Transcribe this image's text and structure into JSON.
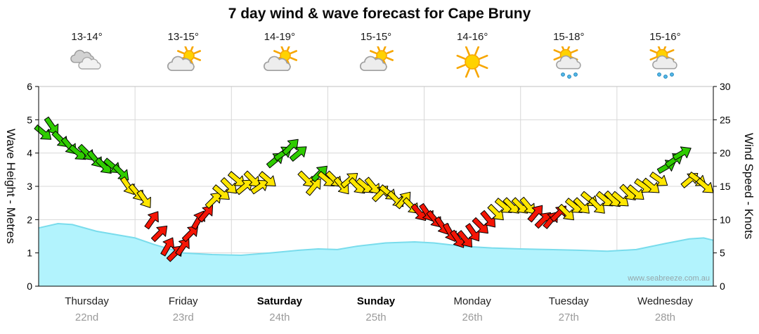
{
  "title": "7 day wind & wave forecast for Cape Bruny",
  "watermark": "www.seabreeze.com.au",
  "axes": {
    "left_label": "Wave Height - Metres",
    "right_label": "Wind Speed - Knots",
    "wave_range": [
      0,
      6
    ],
    "wind_range": [
      0,
      30
    ],
    "wave_ticks": [
      0,
      1,
      2,
      3,
      4,
      5,
      6
    ],
    "wind_ticks": [
      0,
      5,
      10,
      15,
      20,
      25,
      30
    ]
  },
  "days": [
    {
      "name": "Thursday",
      "date": "22nd",
      "temp": "13-14°",
      "icon": "cloudy",
      "weekend": false
    },
    {
      "name": "Friday",
      "date": "23rd",
      "temp": "13-15°",
      "icon": "partly-cloudy",
      "weekend": false
    },
    {
      "name": "Saturday",
      "date": "24th",
      "temp": "14-19°",
      "icon": "partly-cloudy",
      "weekend": true
    },
    {
      "name": "Sunday",
      "date": "25th",
      "temp": "15-15°",
      "icon": "partly-cloudy",
      "weekend": true
    },
    {
      "name": "Monday",
      "date": "26th",
      "temp": "14-16°",
      "icon": "sunny",
      "weekend": false
    },
    {
      "name": "Tuesday",
      "date": "27th",
      "temp": "15-18°",
      "icon": "sun-showers",
      "weekend": false
    },
    {
      "name": "Wednesday",
      "date": "28th",
      "temp": "15-16°",
      "icon": "sun-showers",
      "weekend": false
    }
  ],
  "chart_data": {
    "type": "area+arrows",
    "x_unit": "day",
    "wave_series": {
      "name": "Wave Height",
      "units": "m",
      "fill": "#b2f3fd",
      "stroke": "#79dcec",
      "points": [
        [
          0,
          1.75
        ],
        [
          0.2,
          1.88
        ],
        [
          0.35,
          1.85
        ],
        [
          0.6,
          1.65
        ],
        [
          0.8,
          1.55
        ],
        [
          1.0,
          1.45
        ],
        [
          1.2,
          1.25
        ],
        [
          1.5,
          1.0
        ],
        [
          1.8,
          0.95
        ],
        [
          2.1,
          0.93
        ],
        [
          2.4,
          1.0
        ],
        [
          2.7,
          1.08
        ],
        [
          2.9,
          1.12
        ],
        [
          3.1,
          1.1
        ],
        [
          3.3,
          1.2
        ],
        [
          3.6,
          1.3
        ],
        [
          3.9,
          1.33
        ],
        [
          4.1,
          1.3
        ],
        [
          4.4,
          1.2
        ],
        [
          4.7,
          1.15
        ],
        [
          5.0,
          1.12
        ],
        [
          5.3,
          1.1
        ],
        [
          5.6,
          1.08
        ],
        [
          5.9,
          1.05
        ],
        [
          6.2,
          1.1
        ],
        [
          6.5,
          1.28
        ],
        [
          6.75,
          1.42
        ],
        [
          6.9,
          1.45
        ],
        [
          7.0,
          1.38
        ]
      ]
    },
    "wind_arrows": {
      "units": "knots",
      "colors": {
        "g": "#2fcc00",
        "y": "#ffe600",
        "r": "#f51505"
      },
      "arrows": [
        [
          0.05,
          23,
          40,
          "g"
        ],
        [
          0.14,
          24,
          55,
          "g"
        ],
        [
          0.23,
          22,
          45,
          "g"
        ],
        [
          0.32,
          21,
          50,
          "g"
        ],
        [
          0.41,
          20,
          40,
          "g"
        ],
        [
          0.5,
          20,
          45,
          "g"
        ],
        [
          0.59,
          19,
          50,
          "g"
        ],
        [
          0.68,
          18,
          45,
          "g"
        ],
        [
          0.77,
          18,
          40,
          "g"
        ],
        [
          0.86,
          17,
          45,
          "g"
        ],
        [
          0.93,
          15,
          55,
          "y"
        ],
        [
          1.02,
          14,
          50,
          "y"
        ],
        [
          1.1,
          13,
          55,
          "y"
        ],
        [
          1.18,
          10,
          -55,
          "r"
        ],
        [
          1.26,
          8,
          -45,
          "r"
        ],
        [
          1.34,
          6,
          -60,
          "r"
        ],
        [
          1.42,
          5,
          -45,
          "r"
        ],
        [
          1.5,
          6,
          -55,
          "r"
        ],
        [
          1.58,
          8,
          -45,
          "r"
        ],
        [
          1.66,
          10,
          -60,
          "r"
        ],
        [
          1.74,
          11,
          -50,
          "r"
        ],
        [
          1.82,
          13,
          -45,
          "y"
        ],
        [
          1.9,
          14,
          40,
          "y"
        ],
        [
          1.98,
          15,
          45,
          "y"
        ],
        [
          2.06,
          16,
          40,
          "y"
        ],
        [
          2.14,
          15,
          -40,
          "y"
        ],
        [
          2.22,
          16,
          45,
          "y"
        ],
        [
          2.3,
          15,
          -35,
          "y"
        ],
        [
          2.38,
          16,
          40,
          "y"
        ],
        [
          2.46,
          19,
          -40,
          "g"
        ],
        [
          2.54,
          20,
          -35,
          "g"
        ],
        [
          2.62,
          21,
          -45,
          "g"
        ],
        [
          2.7,
          20,
          -40,
          "g"
        ],
        [
          2.78,
          16,
          45,
          "y"
        ],
        [
          2.86,
          15,
          -50,
          "y"
        ],
        [
          2.92,
          17,
          -45,
          "g"
        ],
        [
          2.99,
          16,
          40,
          "y"
        ],
        [
          3.07,
          16,
          45,
          "y"
        ],
        [
          3.15,
          15,
          50,
          "y"
        ],
        [
          3.23,
          16,
          -40,
          "y"
        ],
        [
          3.31,
          15,
          45,
          "y"
        ],
        [
          3.39,
          15,
          40,
          "y"
        ],
        [
          3.47,
          15,
          50,
          "y"
        ],
        [
          3.55,
          14,
          -45,
          "y"
        ],
        [
          3.63,
          14,
          40,
          "y"
        ],
        [
          3.71,
          13,
          45,
          "y"
        ],
        [
          3.79,
          13,
          -50,
          "y"
        ],
        [
          3.87,
          12,
          45,
          "y"
        ],
        [
          3.95,
          11,
          50,
          "r"
        ],
        [
          4.03,
          11,
          55,
          "r"
        ],
        [
          4.11,
          10,
          50,
          "r"
        ],
        [
          4.19,
          9,
          55,
          "r"
        ],
        [
          4.27,
          8,
          60,
          "r"
        ],
        [
          4.35,
          7,
          55,
          "r"
        ],
        [
          4.43,
          7,
          50,
          "r"
        ],
        [
          4.51,
          8,
          55,
          "r"
        ],
        [
          4.59,
          9,
          45,
          "r"
        ],
        [
          4.67,
          10,
          50,
          "r"
        ],
        [
          4.75,
          11,
          45,
          "y"
        ],
        [
          4.83,
          12,
          40,
          "y"
        ],
        [
          4.91,
          12,
          45,
          "y"
        ],
        [
          5.0,
          12,
          45,
          "y"
        ],
        [
          5.08,
          12,
          50,
          "y"
        ],
        [
          5.16,
          11,
          -50,
          "r"
        ],
        [
          5.24,
          10,
          -45,
          "r"
        ],
        [
          5.32,
          10,
          -50,
          "r"
        ],
        [
          5.4,
          11,
          -45,
          "r"
        ],
        [
          5.48,
          11,
          45,
          "y"
        ],
        [
          5.56,
          12,
          40,
          "y"
        ],
        [
          5.64,
          12,
          45,
          "y"
        ],
        [
          5.72,
          13,
          40,
          "y"
        ],
        [
          5.8,
          12,
          45,
          "y"
        ],
        [
          5.88,
          13,
          40,
          "y"
        ],
        [
          5.96,
          13,
          45,
          "y"
        ],
        [
          6.04,
          13,
          40,
          "y"
        ],
        [
          6.12,
          14,
          45,
          "y"
        ],
        [
          6.2,
          14,
          40,
          "y"
        ],
        [
          6.28,
          15,
          35,
          "y"
        ],
        [
          6.36,
          15,
          40,
          "y"
        ],
        [
          6.44,
          16,
          35,
          "y"
        ],
        [
          6.52,
          18,
          -30,
          "g"
        ],
        [
          6.6,
          19,
          -35,
          "g"
        ],
        [
          6.68,
          20,
          -30,
          "g"
        ],
        [
          6.76,
          16,
          -40,
          "y"
        ],
        [
          6.84,
          16,
          35,
          "y"
        ],
        [
          6.92,
          15,
          40,
          "y"
        ]
      ]
    }
  }
}
